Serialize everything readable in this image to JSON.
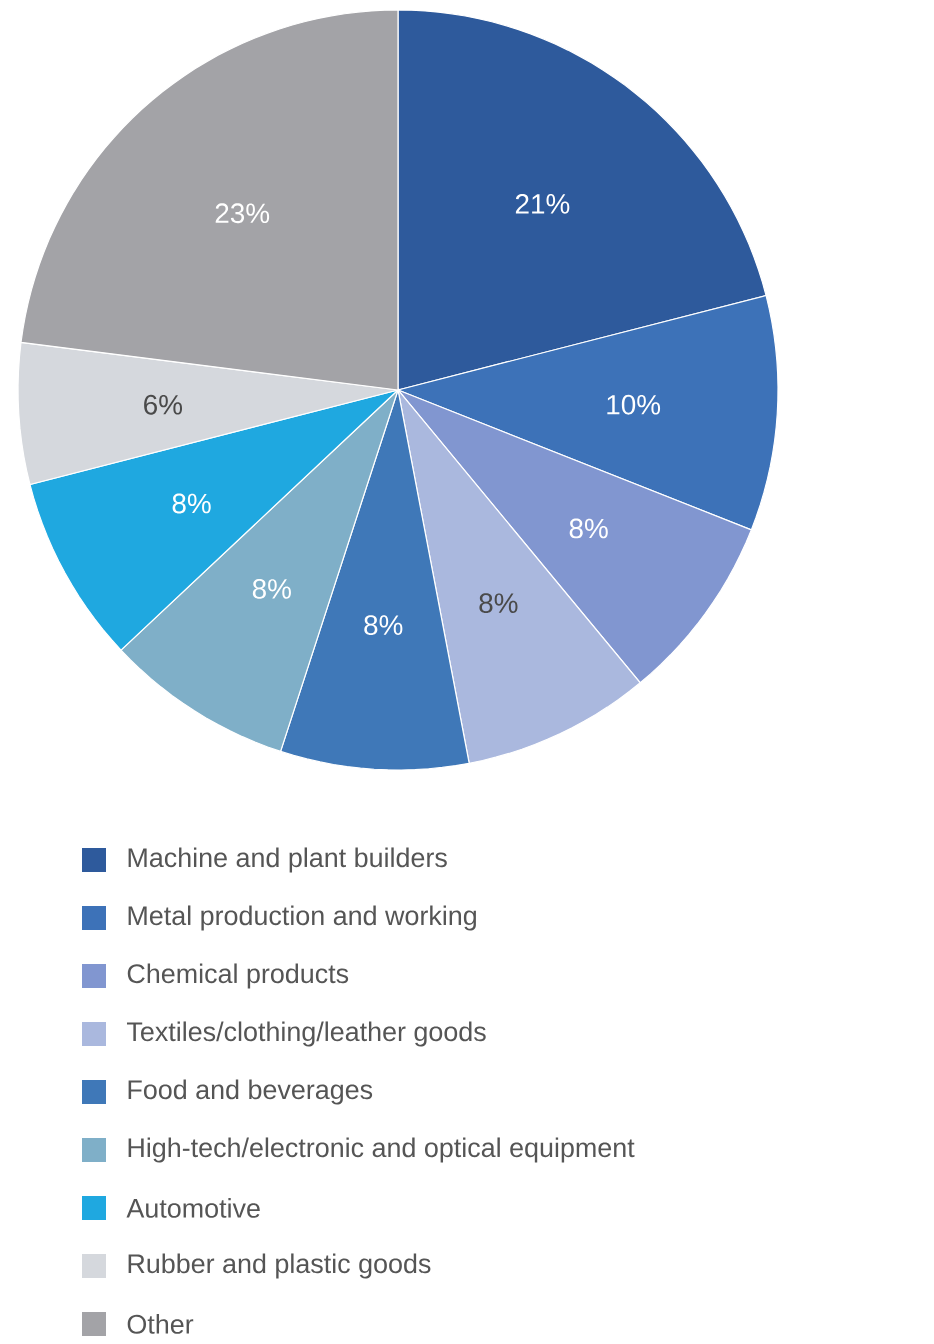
{
  "chart_data": {
    "type": "pie",
    "categories": [
      "Machine and plant builders",
      "Metal production and working",
      "Chemical products",
      "Textiles/clothing/leather goods",
      "Food and beverages",
      "High-tech/electronic and optical equipment",
      "Automotive",
      "Rubber and plastic goods",
      "Other"
    ],
    "values": [
      21,
      10,
      8,
      8,
      8,
      8,
      8,
      6,
      23
    ],
    "value_labels": [
      "21%",
      "10%",
      "8%",
      "8%",
      "8%",
      "8%",
      "8%",
      "6%",
      "23%"
    ],
    "colors": [
      "#2e5a9c",
      "#3d72b8",
      "#8196d0",
      "#aab8de",
      "#3f78b8",
      "#7fafc8",
      "#1fa8e0",
      "#d5d8dd",
      "#a3a3a7"
    ],
    "legend": "bottom"
  }
}
